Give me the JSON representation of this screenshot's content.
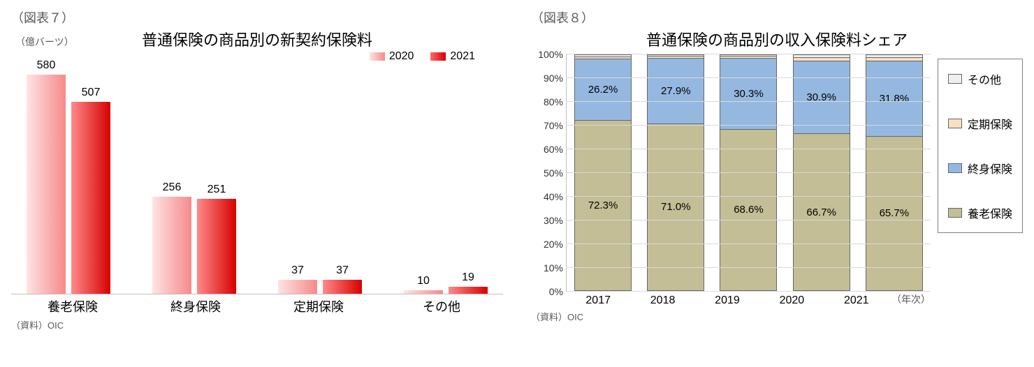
{
  "chart7": {
    "type": "bar-grouped",
    "figure_label": "（図表７）",
    "title": "普通保険の商品別の新契約保険料",
    "y_unit": "（億バーツ）",
    "source": "（資料）OIC",
    "ylim": [
      0,
      600
    ],
    "legend": [
      {
        "label": "2020",
        "color_light": "#f58a8a"
      },
      {
        "label": "2021",
        "color_dark": "#d70000"
      }
    ],
    "categories": [
      "養老保険",
      "終身保険",
      "定期保険",
      "その他"
    ],
    "series": {
      "2020": [
        580,
        256,
        37,
        10
      ],
      "2021": [
        507,
        251,
        37,
        19
      ]
    },
    "bar_colors": {
      "2020_gradient": [
        "#ffe3e3",
        "#f58a8a"
      ],
      "2021_gradient": [
        "#ff8a8a",
        "#d70000"
      ]
    },
    "label_fontsize": 16,
    "title_fontsize": 22
  },
  "chart8": {
    "type": "bar-stacked-100",
    "figure_label": "（図表８）",
    "title": "普通保険の商品別の収入保険料シェア",
    "x_axis_title": "（年次）",
    "source": "（資料）OIC",
    "years": [
      "2017",
      "2018",
      "2019",
      "2020",
      "2021"
    ],
    "y_ticks": [
      0,
      10,
      20,
      30,
      40,
      50,
      60,
      70,
      80,
      90,
      100
    ],
    "y_tick_suffix": "%",
    "legend_order": [
      "その他",
      "定期保険",
      "終身保険",
      "養老保険"
    ],
    "colors": {
      "養老保険": "#c3be96",
      "終身保険": "#95b8e0",
      "定期保険": "#f5e0c0",
      "その他": "#efefef"
    },
    "stacks": {
      "2017": {
        "養老保険": 72.3,
        "終身保険": 26.2,
        "定期保険": 1.0,
        "その他": 0.5
      },
      "2018": {
        "養老保険": 71.0,
        "終身保険": 27.9,
        "定期保険": 0.7,
        "その他": 0.4
      },
      "2019": {
        "養老保険": 68.6,
        "終身保険": 30.3,
        "定期保険": 0.7,
        "その他": 0.4
      },
      "2020": {
        "養老保険": 66.7,
        "終身保険": 30.9,
        "定期保険": 1.4,
        "その他": 1.0
      },
      "2021": {
        "養老保険": 65.7,
        "終身保険": 31.8,
        "定期保険": 1.5,
        "その他": 1.0
      }
    },
    "show_labels_for": [
      "養老保険",
      "終身保険"
    ],
    "grid_color": "#d9d9d9",
    "label_fontsize": 15,
    "title_fontsize": 22
  }
}
